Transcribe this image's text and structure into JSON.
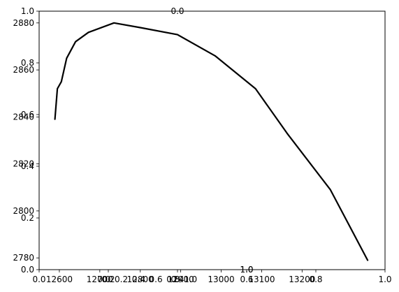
{
  "chart_data": {
    "type": "line",
    "title": "",
    "xlabel": "",
    "ylabel": "",
    "line_color": "#000000",
    "grid": false,
    "x": [
      12589,
      12595,
      12605,
      12618,
      12640,
      12672,
      12735,
      12800,
      12892,
      12985,
      13085,
      13163,
      13270,
      13362
    ],
    "y": [
      2839,
      2852,
      2855,
      2865,
      2872,
      2876,
      2880,
      2878,
      2875,
      2866,
      2852,
      2833,
      2809,
      2779
    ],
    "xlim": [
      12550,
      13405
    ],
    "ylim": [
      2775,
      2885
    ],
    "x_ticks": [
      12600,
      12700,
      12800,
      12900,
      13000,
      13100,
      13200
    ],
    "x_tick_labels": [
      "12600",
      "12700",
      "12800",
      "12900",
      "13000",
      "13100",
      "13200"
    ],
    "y_ticks": [
      2780,
      2800,
      2820,
      2840,
      2860,
      2880
    ],
    "y_tick_labels": [
      "2780",
      "2800",
      "2820",
      "2840",
      "2860",
      "2880"
    ],
    "overlay_axis": {
      "x_ticks": [
        0.0,
        0.2,
        0.4,
        0.6,
        0.8,
        1.0
      ],
      "x_tick_labels": [
        "0.0",
        "0.2",
        "0.4",
        "0.6",
        "0.8",
        "1.0"
      ],
      "y_ticks": [
        0.0,
        0.2,
        0.4,
        0.6,
        0.8,
        1.0
      ],
      "y_tick_labels": [
        "0.0",
        "0.2",
        "0.4",
        "0.6",
        "0.8",
        "1.0"
      ]
    },
    "stray_axes": [
      {
        "x_ticks": [
          0.0,
          0.2,
          0.4,
          0.6,
          0.8,
          1.0
        ],
        "x_tick_labels": [
          "0.0",
          "0.2",
          "0.4",
          "0.6",
          "0.8",
          "1.0"
        ],
        "xlim": [
          -0.75,
          3.25
        ]
      },
      {
        "x_ticks": [
          0.0
        ],
        "x_tick_labels": [
          "0.0"
        ],
        "xlim": [
          -0.2,
          0.3
        ]
      },
      {
        "x_ticks": [
          1.0
        ],
        "x_tick_labels": [
          "1.0"
        ],
        "xlim": [
          0.7,
          1.2
        ]
      },
      {
        "x_ticks": [
          1.0
        ],
        "x_tick_labels": [
          "1.0"
        ],
        "xlim": [
          0.7,
          1.2
        ]
      }
    ]
  }
}
